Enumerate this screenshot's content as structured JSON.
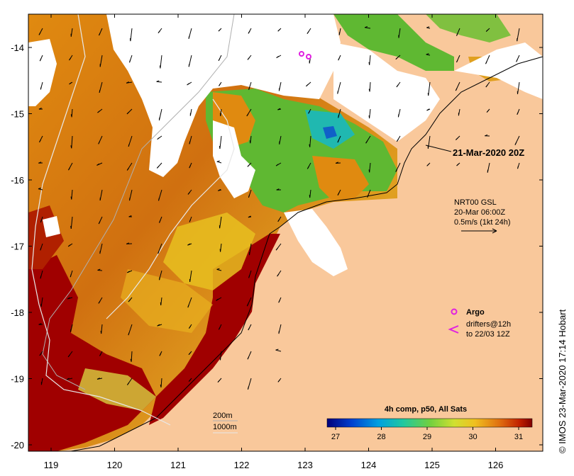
{
  "map": {
    "lon_ticks": [
      "119",
      "120",
      "121",
      "122",
      "123",
      "124",
      "125",
      "126"
    ],
    "lat_ticks": [
      "-14",
      "-15",
      "-16",
      "-17",
      "-18",
      "-19",
      "-20"
    ],
    "timestamp": "21-Mar-2020 20Z",
    "current_info": {
      "line1": "NRT00 GSL",
      "line2": "20-Mar 06:00Z",
      "line3": "0.5m/s (1kt 24h)"
    },
    "legend": {
      "argo": "Argo",
      "drifters_line1": "drifters@12h",
      "drifters_line2": "to 22/03 12Z"
    },
    "contours": {
      "c200": "200m",
      "c1000": "1000m"
    },
    "colorbar": {
      "title": "4h comp, p50, All Sats",
      "ticks": [
        "27",
        "28",
        "29",
        "30",
        "31"
      ]
    },
    "credit": "©  IMOS 23-Mar-2020 17:14 Hobart",
    "colors": {
      "land": "#f9c89b",
      "warm": "#c84a00",
      "hot": "#a00000",
      "mid": "#e08a10",
      "yellow": "#e8c020",
      "green": "#5fb832",
      "cyan": "#20b8b0",
      "blue": "#1060c8",
      "cloud": "#ffffff"
    }
  }
}
